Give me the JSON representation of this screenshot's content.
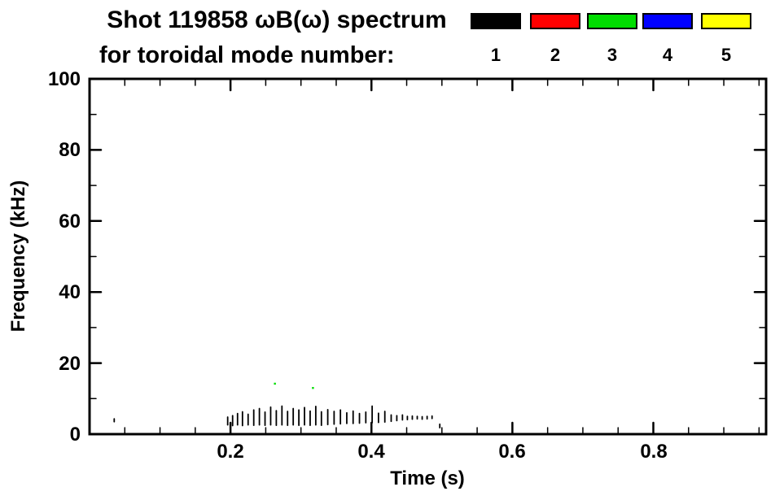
{
  "header": {
    "title_line1": "Shot 119858 ωB(ω) spectrum",
    "title_line2": "for toroidal mode number:",
    "legend": [
      {
        "label": "1",
        "color": "#000000"
      },
      {
        "label": "2",
        "color": "#ff0000"
      },
      {
        "label": "3",
        "color": "#00dd00"
      },
      {
        "label": "4",
        "color": "#0000ff"
      },
      {
        "label": "5",
        "color": "#ffff00"
      }
    ]
  },
  "axes": {
    "xlabel": "Time (s)",
    "ylabel": "Frequency (kHz)",
    "xtick_labels": [
      "0.2",
      "0.4",
      "0.6",
      "0.8"
    ],
    "ytick_labels": [
      "0",
      "20",
      "40",
      "60",
      "80",
      "100"
    ]
  },
  "chart_data": {
    "type": "scatter",
    "title": "Shot 119858 ωB(ω) spectrum for toroidal mode number: 1 2 3 4 5",
    "xlabel": "Time (s)",
    "ylabel": "Frequency (kHz)",
    "xlim": [
      0.0,
      0.96
    ],
    "ylim": [
      0,
      100
    ],
    "xticks": [
      0.2,
      0.4,
      0.6,
      0.8
    ],
    "yticks": [
      0,
      20,
      40,
      60,
      80,
      100
    ],
    "xminor_step": 0.05,
    "yminor_step": 10,
    "grid": false,
    "legend_position": "top-right",
    "series": [
      {
        "name": "n=1",
        "color": "#000000",
        "segments": [
          [
            0.035,
            3.5,
            4.3
          ],
          [
            0.196,
            2.6,
            4.8
          ],
          [
            0.203,
            2.4,
            5.2
          ],
          [
            0.21,
            2.6,
            5.8
          ],
          [
            0.217,
            2.4,
            6.3
          ],
          [
            0.225,
            2.6,
            5.6
          ],
          [
            0.233,
            2.5,
            6.8
          ],
          [
            0.241,
            2.6,
            7.2
          ],
          [
            0.249,
            2.5,
            6.2
          ],
          [
            0.257,
            2.6,
            7.6
          ],
          [
            0.265,
            2.5,
            6.6
          ],
          [
            0.273,
            2.6,
            7.9
          ],
          [
            0.281,
            2.5,
            6.4
          ],
          [
            0.289,
            2.6,
            7.2
          ],
          [
            0.297,
            2.5,
            6.8
          ],
          [
            0.305,
            2.6,
            7.5
          ],
          [
            0.313,
            2.5,
            6.5
          ],
          [
            0.321,
            2.6,
            7.8
          ],
          [
            0.329,
            2.5,
            6.3
          ],
          [
            0.338,
            2.7,
            6.9
          ],
          [
            0.347,
            2.8,
            6.4
          ],
          [
            0.356,
            2.9,
            6.8
          ],
          [
            0.365,
            3.0,
            6.0
          ],
          [
            0.374,
            3.0,
            6.5
          ],
          [
            0.383,
            3.1,
            5.8
          ],
          [
            0.392,
            3.2,
            6.2
          ],
          [
            0.401,
            3.2,
            7.9
          ],
          [
            0.41,
            3.3,
            5.9
          ],
          [
            0.419,
            3.4,
            6.4
          ],
          [
            0.428,
            3.6,
            5.4
          ],
          [
            0.436,
            3.8,
            5.2
          ],
          [
            0.444,
            4.0,
            5.4
          ],
          [
            0.451,
            4.1,
            5.0
          ],
          [
            0.458,
            4.2,
            5.1
          ],
          [
            0.465,
            4.3,
            5.0
          ],
          [
            0.472,
            4.2,
            4.9
          ],
          [
            0.479,
            4.3,
            5.0
          ],
          [
            0.486,
            4.4,
            5.1
          ],
          [
            0.497,
            1.8,
            2.8
          ]
        ],
        "points": []
      },
      {
        "name": "n=2",
        "color": "#ff0000",
        "segments": [],
        "points": []
      },
      {
        "name": "n=3",
        "color": "#00dd00",
        "segments": [],
        "points": [
          [
            0.263,
            14.2
          ],
          [
            0.317,
            13.0
          ]
        ]
      },
      {
        "name": "n=4",
        "color": "#0000ff",
        "segments": [],
        "points": []
      },
      {
        "name": "n=5",
        "color": "#ffff00",
        "segments": [],
        "points": []
      }
    ]
  }
}
